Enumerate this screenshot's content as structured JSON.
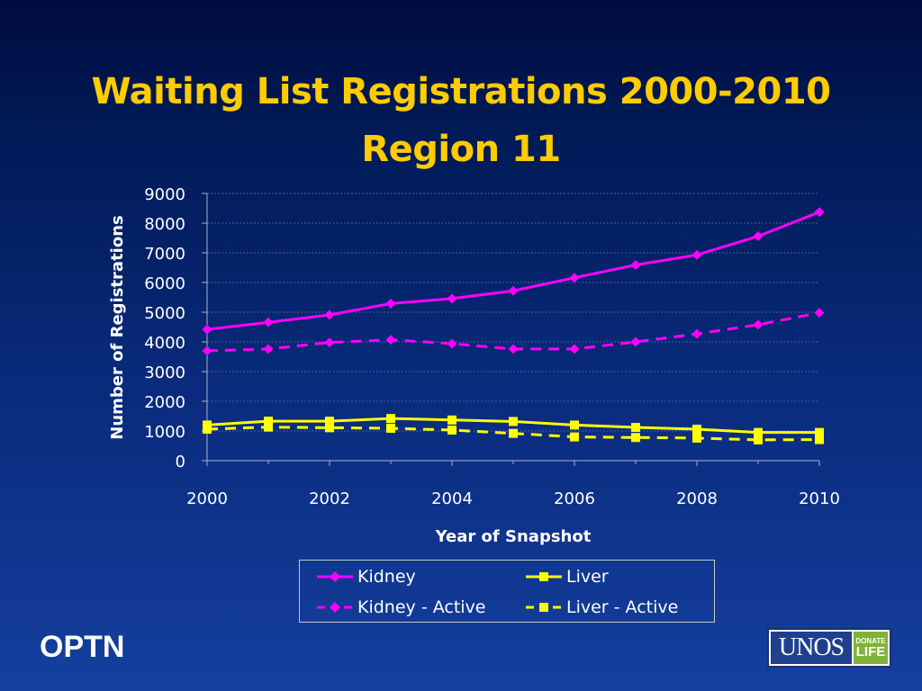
{
  "slide": {
    "title_line1": "Waiting List Registrations 2000-2010",
    "title_line2": "Region 11",
    "footer_left": "OPTN",
    "logo": {
      "main_text": "UNOS",
      "badge_top": "DONATE",
      "badge_bottom": "LIFE"
    }
  },
  "colors": {
    "kidney": "#ff00ff",
    "liver": "#ffff00",
    "background": "#0a2a7c",
    "title": "#ffcc00"
  },
  "chart_data": {
    "type": "line",
    "title": "",
    "xlabel": "Year of Snapshot",
    "ylabel": "Number of Registrations",
    "xlim": [
      2000,
      2010
    ],
    "ylim": [
      0,
      9000
    ],
    "xticks": [
      2000,
      2002,
      2004,
      2006,
      2008,
      2010
    ],
    "yticks": [
      0,
      1000,
      2000,
      3000,
      4000,
      5000,
      6000,
      7000,
      8000,
      9000
    ],
    "grid": "horizontal",
    "legend_position": "bottom",
    "x": [
      2000,
      2001,
      2002,
      2003,
      2004,
      2005,
      2006,
      2007,
      2008,
      2009,
      2010
    ],
    "series": [
      {
        "name": "Kidney",
        "color": "#ff00ff",
        "dash": "solid",
        "marker": "diamond",
        "values": [
          4420,
          4660,
          4910,
          5290,
          5460,
          5720,
          6160,
          6590,
          6930,
          7560,
          8370
        ]
      },
      {
        "name": "Liver",
        "color": "#ffff00",
        "dash": "solid",
        "marker": "square",
        "values": [
          1200,
          1330,
          1330,
          1420,
          1370,
          1320,
          1200,
          1120,
          1060,
          950,
          950
        ]
      },
      {
        "name": "Kidney - Active",
        "color": "#ff00ff",
        "dash": "dashed",
        "marker": "diamond",
        "values": [
          3700,
          3760,
          3980,
          4070,
          3940,
          3760,
          3760,
          4000,
          4270,
          4580,
          4980
        ]
      },
      {
        "name": "Liver - Active",
        "color": "#ffff00",
        "dash": "dashed",
        "marker": "square",
        "values": [
          1060,
          1130,
          1110,
          1090,
          1030,
          920,
          800,
          780,
          760,
          700,
          710
        ]
      }
    ]
  }
}
